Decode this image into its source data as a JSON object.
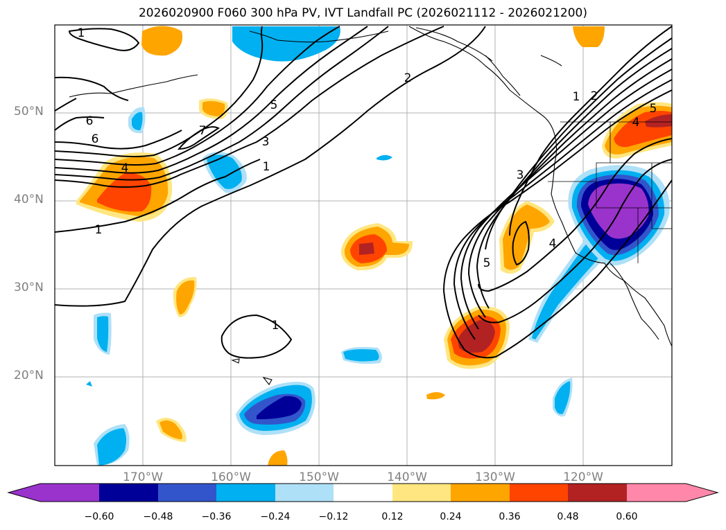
{
  "title": "2026020900 F060 300 hPa PV, IVT Landfall PC (2026021112 - 2026021200)",
  "axes": {
    "lat_labels": [
      "50°N",
      "40°N",
      "30°N",
      "20°N"
    ],
    "lon_labels": [
      "170°W",
      "160°W",
      "150°W",
      "140°W",
      "130°W",
      "120°W"
    ]
  },
  "contour_labels": [
    "1",
    "1",
    "1",
    "1",
    "1",
    "2",
    "2",
    "3",
    "3",
    "4",
    "4",
    "4",
    "5",
    "5",
    "5",
    "6",
    "6",
    "7"
  ],
  "colorbar": {
    "ticks": [
      "−0.60",
      "−0.48",
      "−0.36",
      "−0.24",
      "−0.12",
      "0.12",
      "0.24",
      "0.36",
      "0.48",
      "0.60"
    ],
    "colors": [
      "#9933cc",
      "#000099",
      "#3355cc",
      "#00b0f0",
      "#aee0f8",
      "#ffffff",
      "#ffe680",
      "#ffa500",
      "#ff4400",
      "#b22222",
      "#ff88aa"
    ]
  }
}
